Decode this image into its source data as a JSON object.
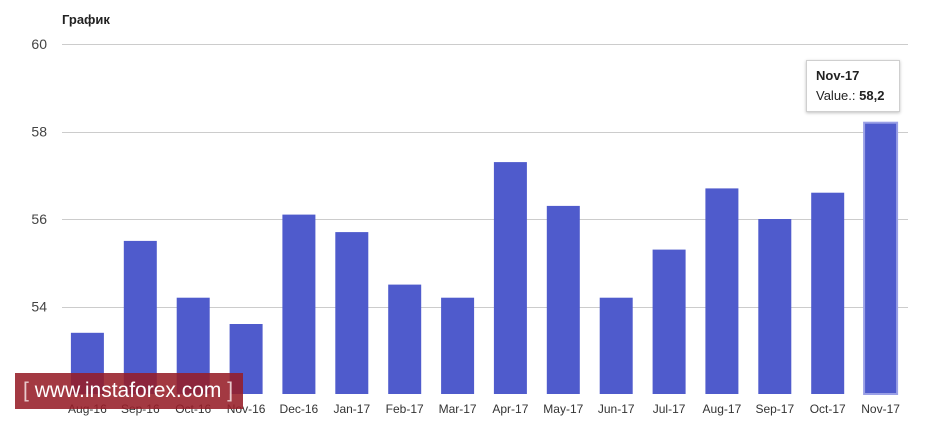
{
  "chart_data": {
    "type": "bar",
    "title": "График",
    "categories": [
      "Aug-16",
      "Sep-16",
      "Oct-16",
      "Nov-16",
      "Dec-16",
      "Jan-17",
      "Feb-17",
      "Mar-17",
      "Apr-17",
      "May-17",
      "Jun-17",
      "Jul-17",
      "Aug-17",
      "Sep-17",
      "Oct-17",
      "Nov-17"
    ],
    "values": [
      53.4,
      55.5,
      54.2,
      53.6,
      56.1,
      55.7,
      54.5,
      54.2,
      57.3,
      56.3,
      54.2,
      55.3,
      56.7,
      56.0,
      56.6,
      58.2
    ],
    "ylim": [
      52,
      60
    ],
    "yticks": [
      54,
      56,
      58,
      60
    ],
    "grid": true,
    "bar_color": "#4f5bcc",
    "highlighted_category": "Nov-17"
  },
  "tooltip": {
    "title": "Nov-17",
    "label": "Value.:",
    "value": "58,2"
  },
  "watermark": {
    "open": "[",
    "text": "www.instaforex.com",
    "close": "]"
  }
}
